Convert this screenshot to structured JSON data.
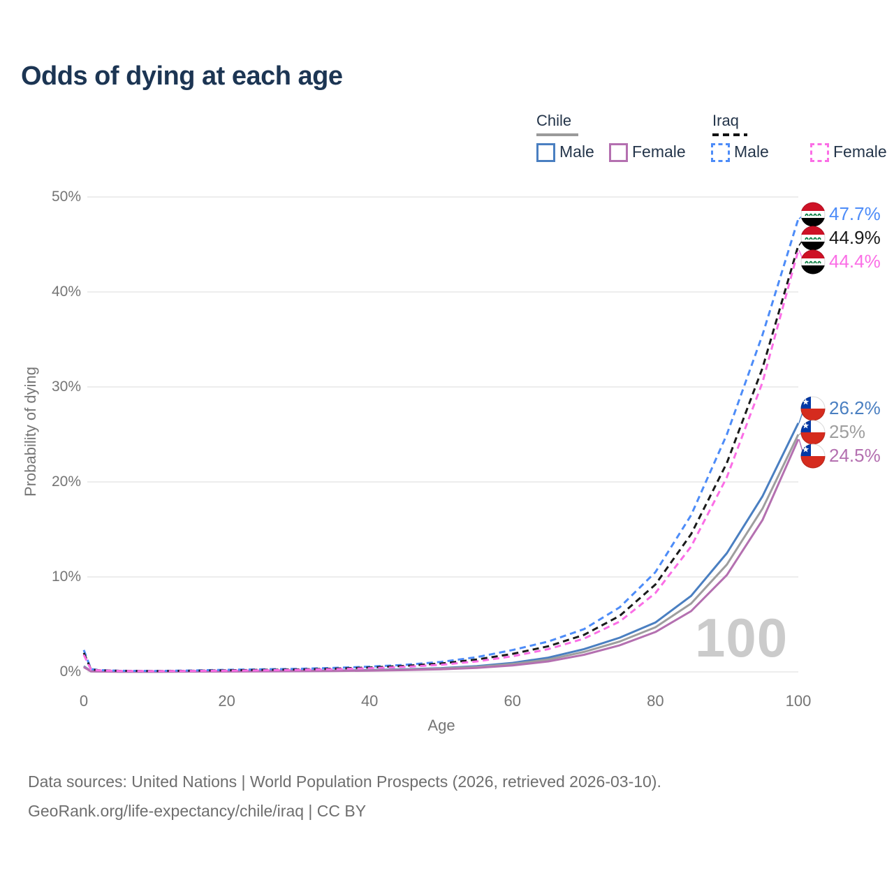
{
  "title": "Odds of dying at each age",
  "legend": {
    "chile": {
      "label": "Chile",
      "male": "Male",
      "female": "Female"
    },
    "iraq": {
      "label": "Iraq",
      "male": "Male",
      "female": "Female"
    }
  },
  "colors": {
    "title_text": "#1c3553",
    "legend_text": "#24354a",
    "axis_text": "#757575",
    "grid": "#ededed",
    "watermark": "#cbcbcb",
    "footer_text": "#6e6e6e",
    "chile_male": "#4a7fc1",
    "chile_both": "#9e9e9e",
    "chile_female": "#b470b0",
    "iraq_male": "#4d8cf8",
    "iraq_both": "#1a1a1a",
    "iraq_female": "#fb6ee6",
    "chile_underline": "#9a9a9a",
    "iraq_underline": "#111111"
  },
  "chart_data": {
    "type": "line",
    "title": "Odds of dying at each age",
    "xlabel": "Age",
    "ylabel": "Probability of dying",
    "xlim": [
      0,
      100
    ],
    "ylim_percent": [
      0,
      50
    ],
    "grid": true,
    "legend_position": "top-right",
    "watermark": "100",
    "xticks": [
      {
        "v": 0,
        "label": "0"
      },
      {
        "v": 20,
        "label": "20"
      },
      {
        "v": 40,
        "label": "40"
      },
      {
        "v": 60,
        "label": "60"
      },
      {
        "v": 80,
        "label": "80"
      },
      {
        "v": 100,
        "label": "100"
      }
    ],
    "yticks": [
      {
        "v": 0,
        "label": "0%"
      },
      {
        "v": 10,
        "label": "10%"
      },
      {
        "v": 20,
        "label": "20%"
      },
      {
        "v": 30,
        "label": "30%"
      },
      {
        "v": 40,
        "label": "40%"
      },
      {
        "v": 50,
        "label": "50%"
      }
    ],
    "x": [
      0,
      1,
      2,
      5,
      10,
      15,
      20,
      25,
      30,
      35,
      40,
      45,
      50,
      55,
      60,
      65,
      70,
      75,
      80,
      85,
      90,
      95,
      100
    ],
    "series": [
      {
        "name": "Iraq Male",
        "country": "Iraq",
        "sex": "Male",
        "color": "#4d8cf8",
        "dashed": true,
        "flag": "iraq-flag",
        "end_label": "47.7%",
        "end_value": 47.7,
        "values": [
          2.3,
          0.3,
          0.2,
          0.12,
          0.1,
          0.15,
          0.22,
          0.27,
          0.32,
          0.42,
          0.55,
          0.75,
          1.05,
          1.55,
          2.3,
          3.2,
          4.5,
          6.8,
          10.5,
          16.5,
          25.0,
          35.5,
          47.7
        ]
      },
      {
        "name": "Iraq Both sexes",
        "country": "Iraq",
        "sex": "Both",
        "color": "#1a1a1a",
        "dashed": true,
        "flag": "iraq-flag",
        "end_label": "44.9%",
        "end_value": 44.9,
        "values": [
          2.0,
          0.27,
          0.18,
          0.11,
          0.09,
          0.12,
          0.17,
          0.21,
          0.26,
          0.34,
          0.46,
          0.63,
          0.88,
          1.3,
          1.9,
          2.7,
          3.9,
          5.9,
          9.2,
          14.5,
          22.0,
          32.0,
          44.9
        ]
      },
      {
        "name": "Iraq Female",
        "country": "Iraq",
        "sex": "Female",
        "color": "#fb6ee6",
        "dashed": true,
        "flag": "iraq-flag",
        "end_label": "44.4%",
        "end_value": 44.4,
        "values": [
          1.8,
          0.24,
          0.16,
          0.1,
          0.08,
          0.1,
          0.13,
          0.17,
          0.21,
          0.28,
          0.38,
          0.53,
          0.75,
          1.1,
          1.65,
          2.4,
          3.5,
          5.3,
          8.3,
          13.2,
          20.5,
          30.5,
          44.4
        ]
      },
      {
        "name": "Chile Male",
        "country": "Chile",
        "sex": "Male",
        "color": "#4a7fc1",
        "dashed": false,
        "flag": "chile-flag",
        "end_label": "26.2%",
        "end_value": 26.2,
        "values": [
          0.6,
          0.07,
          0.05,
          0.03,
          0.03,
          0.05,
          0.08,
          0.1,
          0.12,
          0.15,
          0.2,
          0.28,
          0.4,
          0.6,
          0.95,
          1.5,
          2.4,
          3.6,
          5.2,
          8.0,
          12.5,
          18.5,
          26.2
        ]
      },
      {
        "name": "Chile Both sexes",
        "country": "Chile",
        "sex": "Both",
        "color": "#9e9e9e",
        "dashed": false,
        "flag": "chile-flag",
        "end_label": "25%",
        "end_value": 25.0,
        "values": [
          0.55,
          0.06,
          0.045,
          0.028,
          0.025,
          0.04,
          0.06,
          0.08,
          0.1,
          0.13,
          0.17,
          0.24,
          0.35,
          0.52,
          0.82,
          1.3,
          2.1,
          3.2,
          4.7,
          7.2,
          11.3,
          17.2,
          25.0
        ]
      },
      {
        "name": "Chile Female",
        "country": "Chile",
        "sex": "Female",
        "color": "#b470b0",
        "dashed": false,
        "flag": "chile-flag",
        "end_label": "24.5%",
        "end_value": 24.5,
        "values": [
          0.5,
          0.05,
          0.04,
          0.025,
          0.02,
          0.03,
          0.04,
          0.05,
          0.07,
          0.09,
          0.13,
          0.19,
          0.28,
          0.42,
          0.68,
          1.1,
          1.8,
          2.8,
          4.2,
          6.4,
          10.2,
          16.0,
          24.5
        ]
      }
    ]
  },
  "footer": {
    "line1": "Data sources: United Nations | World Population Prospects (2026, retrieved 2026-03-10).",
    "line2": "GeoRank.org/life-expectancy/chile/iraq | CC BY"
  }
}
